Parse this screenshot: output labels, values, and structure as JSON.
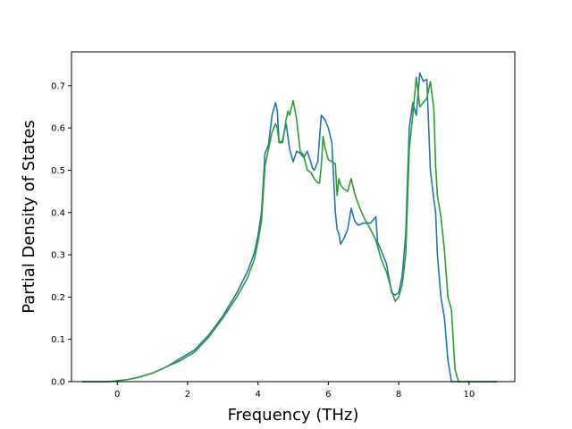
{
  "chart_data": {
    "type": "line",
    "title": "",
    "xlabel": "Frequency (THz)",
    "ylabel": "Partial Density of States",
    "xlim": [
      -1.3,
      11.3
    ],
    "ylim": [
      0.0,
      0.78
    ],
    "xticks": [
      0,
      2,
      4,
      6,
      8,
      10
    ],
    "yticks": [
      0.0,
      0.1,
      0.2,
      0.3,
      0.4,
      0.5,
      0.6,
      0.7
    ],
    "xtick_labels": [
      "0",
      "2",
      "4",
      "6",
      "8",
      "10"
    ],
    "ytick_labels": [
      "0.0",
      "0.1",
      "0.2",
      "0.3",
      "0.4",
      "0.5",
      "0.6",
      "0.7"
    ],
    "grid": false,
    "legend": "none",
    "series": [
      {
        "color": "#1f77b4",
        "x": [
          -1.0,
          -0.2,
          0.0,
          0.3,
          0.6,
          1.0,
          1.4,
          1.8,
          2.2,
          2.6,
          3.0,
          3.4,
          3.7,
          3.9,
          4.0,
          4.1,
          4.2,
          4.3,
          4.4,
          4.5,
          4.55,
          4.6,
          4.7,
          4.8,
          4.9,
          5.0,
          5.1,
          5.2,
          5.3,
          5.4,
          5.5,
          5.55,
          5.6,
          5.7,
          5.8,
          5.9,
          6.0,
          6.1,
          6.2,
          6.25,
          6.3,
          6.35,
          6.45,
          6.55,
          6.65,
          6.75,
          6.85,
          7.0,
          7.2,
          7.35,
          7.4,
          7.5,
          7.65,
          7.8,
          7.9,
          8.0,
          8.1,
          8.2,
          8.3,
          8.4,
          8.5,
          8.6,
          8.7,
          8.8,
          8.9,
          9.0,
          9.05,
          9.1,
          9.2,
          9.3,
          9.4,
          9.5,
          9.6,
          9.7,
          9.75,
          9.8,
          10.0,
          10.8
        ],
        "y": [
          0.0,
          0.0,
          0.002,
          0.005,
          0.01,
          0.02,
          0.035,
          0.055,
          0.075,
          0.11,
          0.155,
          0.21,
          0.26,
          0.305,
          0.345,
          0.4,
          0.54,
          0.56,
          0.63,
          0.66,
          0.64,
          0.565,
          0.57,
          0.61,
          0.55,
          0.52,
          0.545,
          0.54,
          0.53,
          0.545,
          0.52,
          0.505,
          0.5,
          0.52,
          0.63,
          0.62,
          0.6,
          0.565,
          0.4,
          0.36,
          0.35,
          0.325,
          0.34,
          0.36,
          0.41,
          0.38,
          0.37,
          0.375,
          0.375,
          0.39,
          0.33,
          0.31,
          0.28,
          0.21,
          0.205,
          0.21,
          0.25,
          0.35,
          0.6,
          0.66,
          0.63,
          0.73,
          0.71,
          0.715,
          0.5,
          0.43,
          0.4,
          0.3,
          0.2,
          0.15,
          0.05,
          0.0,
          0.0,
          0.0,
          0.0,
          0.0,
          0.0,
          0.0
        ]
      },
      {
        "color": "#2ca02c",
        "x": [
          -1.0,
          -0.2,
          0.0,
          0.3,
          0.6,
          1.0,
          1.4,
          1.8,
          2.2,
          2.6,
          3.0,
          3.4,
          3.7,
          3.9,
          4.0,
          4.1,
          4.2,
          4.3,
          4.4,
          4.5,
          4.55,
          4.6,
          4.7,
          4.8,
          4.85,
          4.9,
          5.0,
          5.1,
          5.2,
          5.3,
          5.4,
          5.5,
          5.6,
          5.7,
          5.75,
          5.8,
          5.85,
          5.9,
          6.0,
          6.1,
          6.2,
          6.25,
          6.3,
          6.35,
          6.45,
          6.55,
          6.65,
          6.75,
          6.85,
          7.0,
          7.2,
          7.35,
          7.4,
          7.5,
          7.65,
          7.8,
          7.9,
          8.0,
          8.1,
          8.2,
          8.3,
          8.4,
          8.5,
          8.6,
          8.7,
          8.8,
          8.9,
          9.0,
          9.05,
          9.1,
          9.2,
          9.3,
          9.4,
          9.5,
          9.6,
          9.7,
          9.75,
          9.8,
          10.0,
          10.8
        ],
        "y": [
          0.0,
          0.0,
          0.002,
          0.005,
          0.01,
          0.02,
          0.035,
          0.05,
          0.07,
          0.105,
          0.15,
          0.2,
          0.245,
          0.29,
          0.33,
          0.38,
          0.51,
          0.55,
          0.59,
          0.61,
          0.6,
          0.565,
          0.565,
          0.62,
          0.64,
          0.63,
          0.665,
          0.62,
          0.545,
          0.535,
          0.5,
          0.495,
          0.48,
          0.47,
          0.47,
          0.51,
          0.58,
          0.555,
          0.525,
          0.52,
          0.515,
          0.44,
          0.48,
          0.465,
          0.455,
          0.45,
          0.48,
          0.445,
          0.42,
          0.39,
          0.36,
          0.335,
          0.32,
          0.29,
          0.26,
          0.215,
          0.19,
          0.2,
          0.23,
          0.3,
          0.55,
          0.63,
          0.72,
          0.65,
          0.66,
          0.67,
          0.71,
          0.645,
          0.51,
          0.44,
          0.39,
          0.31,
          0.2,
          0.17,
          0.03,
          0.0,
          0.0,
          0.0,
          0.0,
          0.0
        ]
      }
    ]
  }
}
